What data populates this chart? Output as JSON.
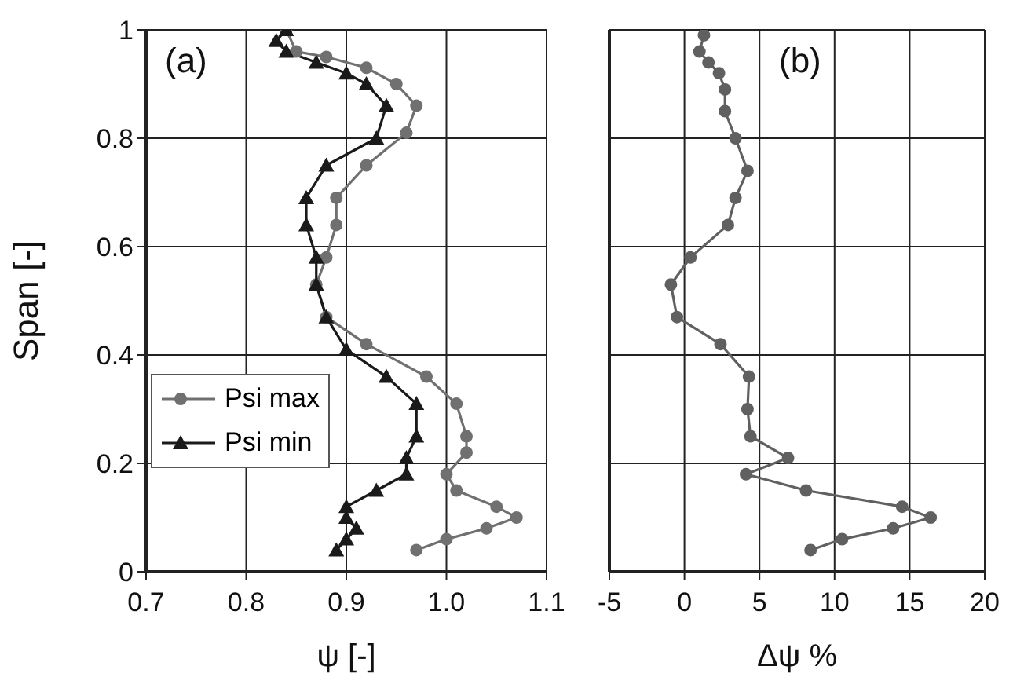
{
  "chart_data": [
    {
      "type": "line",
      "ylabel": "Span [-]",
      "xlabel": "ψ [-]",
      "annotations": [
        "(a)"
      ],
      "xlim": [
        0.7,
        1.1
      ],
      "xticks": [
        {
          "value": 0.7,
          "label": "0.7"
        },
        {
          "value": 0.8,
          "label": "0.8"
        },
        {
          "value": 0.9,
          "label": "0.9"
        },
        {
          "value": 1.0,
          "label": "1.0"
        },
        {
          "value": 1.1,
          "label": "1.1"
        }
      ],
      "ylim": [
        0,
        1
      ],
      "yticks": [
        0,
        0.2,
        0.4,
        0.6,
        0.8,
        1
      ],
      "grid": true,
      "legend": "bottom left",
      "line_style": "solid",
      "series": [
        {
          "name": "Psi max",
          "color": "#707070",
          "marker": "circle",
          "x": [
            0.84,
            0.85,
            0.88,
            0.92,
            0.95,
            0.97,
            0.96,
            0.92,
            0.89,
            0.89,
            0.88,
            0.87,
            0.88,
            0.92,
            0.98,
            1.01,
            1.02,
            1.02,
            1.0,
            1.01,
            1.05,
            1.07,
            1.04,
            1.0,
            0.97
          ],
          "values": [
            1.0,
            0.96,
            0.95,
            0.93,
            0.9,
            0.86,
            0.81,
            0.75,
            0.69,
            0.64,
            0.58,
            0.53,
            0.47,
            0.42,
            0.36,
            0.31,
            0.25,
            0.22,
            0.18,
            0.15,
            0.12,
            0.1,
            0.08,
            0.06,
            0.04
          ]
        },
        {
          "name": "Psi min",
          "color": "#1a1a1a",
          "marker": "triangle",
          "x": [
            0.84,
            0.83,
            0.84,
            0.87,
            0.9,
            0.92,
            0.94,
            0.93,
            0.88,
            0.86,
            0.86,
            0.87,
            0.87,
            0.88,
            0.9,
            0.94,
            0.97,
            0.97,
            0.96,
            0.96,
            0.93,
            0.9,
            0.9,
            0.91,
            0.9,
            0.89
          ],
          "values": [
            1.0,
            0.98,
            0.96,
            0.94,
            0.92,
            0.9,
            0.86,
            0.8,
            0.75,
            0.69,
            0.64,
            0.58,
            0.53,
            0.47,
            0.41,
            0.36,
            0.31,
            0.25,
            0.21,
            0.18,
            0.15,
            0.12,
            0.1,
            0.08,
            0.06,
            0.04
          ]
        }
      ]
    },
    {
      "type": "line",
      "xlabel": "Δψ %",
      "annotations": [
        "(b)"
      ],
      "xlim": [
        -5,
        20
      ],
      "xticks": [
        -5,
        0,
        5,
        10,
        15,
        20
      ],
      "ylim": [
        0,
        1
      ],
      "yticks": [
        0,
        0.2,
        0.4,
        0.6,
        0.8,
        1
      ],
      "tick_labels": "x",
      "grid": true,
      "line_style": "solid",
      "series": [
        {
          "color": "#606060",
          "marker": "circle",
          "x": [
            1.3,
            1.0,
            1.6,
            2.3,
            2.7,
            2.7,
            3.4,
            4.2,
            3.4,
            2.9,
            0.4,
            -0.9,
            -0.5,
            2.4,
            4.3,
            4.2,
            4.4,
            6.9,
            4.1,
            8.1,
            14.5,
            16.4,
            13.9,
            10.5,
            8.4
          ],
          "values": [
            0.99,
            0.96,
            0.94,
            0.92,
            0.89,
            0.85,
            0.8,
            0.74,
            0.69,
            0.64,
            0.58,
            0.53,
            0.47,
            0.42,
            0.36,
            0.3,
            0.25,
            0.21,
            0.18,
            0.15,
            0.12,
            0.1,
            0.08,
            0.06,
            0.04
          ]
        }
      ]
    }
  ]
}
